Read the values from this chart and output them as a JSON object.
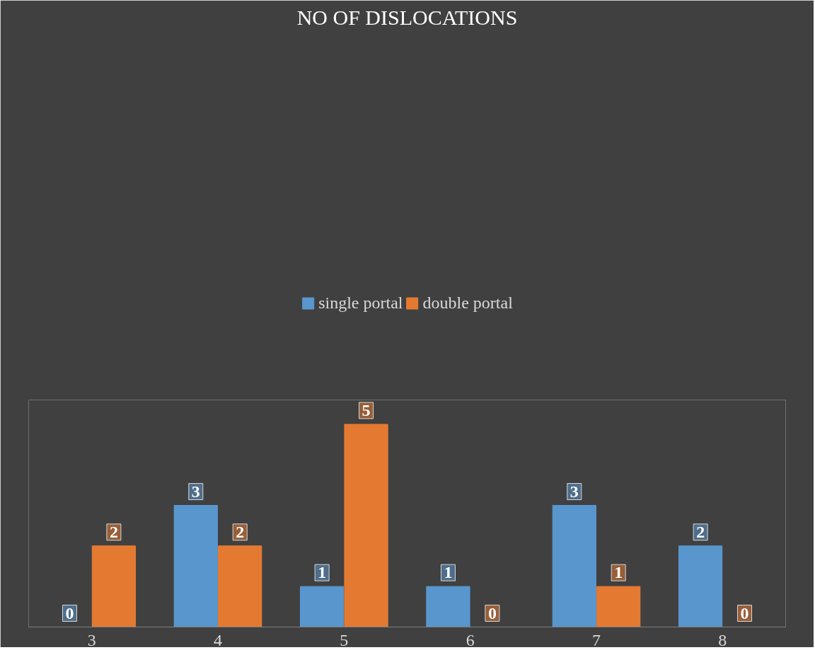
{
  "chart_data": {
    "type": "bar",
    "title": "NO OF DISLOCATIONS",
    "categories": [
      "3",
      "4",
      "5",
      "6",
      "7",
      "8"
    ],
    "series": [
      {
        "name": "single portal",
        "color": "#5b9bd5",
        "values": [
          0,
          3,
          1,
          1,
          3,
          2
        ]
      },
      {
        "name": "double portal",
        "color": "#ed7d31",
        "values": [
          2,
          2,
          5,
          0,
          1,
          0
        ]
      }
    ],
    "data_labels": true,
    "legend": "top",
    "grid": false
  }
}
